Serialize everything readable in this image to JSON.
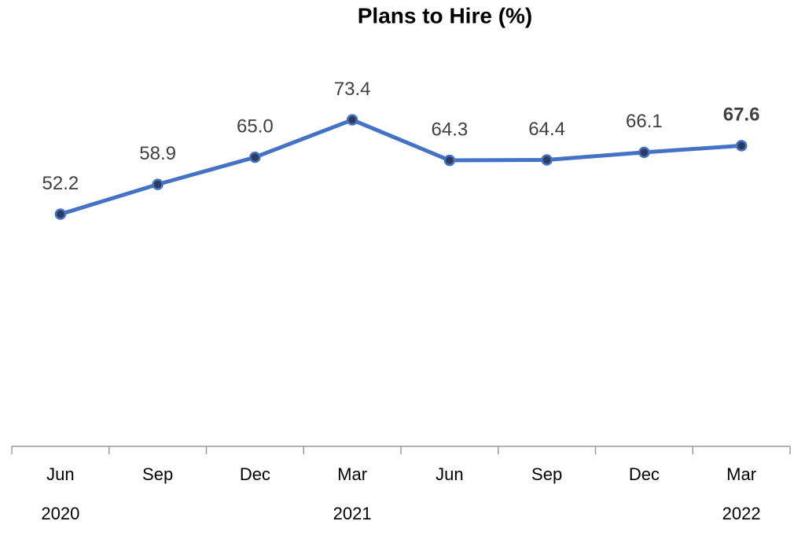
{
  "chart_data": {
    "type": "line",
    "title": "Plans to Hire (%)",
    "categories": [
      "Jun",
      "Sep",
      "Dec",
      "Mar",
      "Jun",
      "Sep",
      "Dec",
      "Mar"
    ],
    "year_labels": [
      "2020",
      null,
      null,
      "2021",
      null,
      null,
      null,
      "2022"
    ],
    "values": [
      52.2,
      58.9,
      65.0,
      73.4,
      64.3,
      64.4,
      66.1,
      67.6
    ],
    "value_labels": [
      "52.2",
      "58.9",
      "65.0",
      "73.4",
      "64.3",
      "64.4",
      "66.1",
      "67.6"
    ],
    "color": "#4472c4",
    "ylim": [
      0,
      100
    ]
  }
}
